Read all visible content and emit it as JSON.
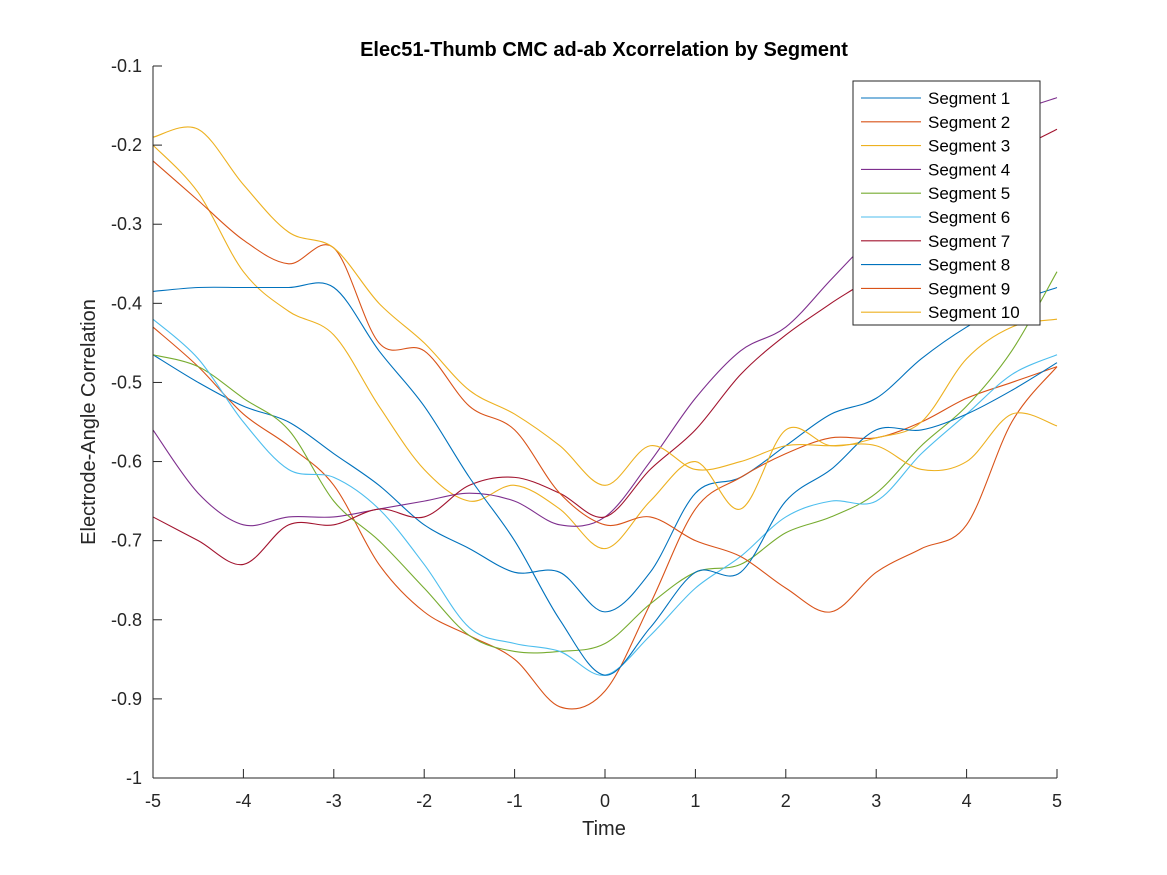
{
  "chart_data": {
    "type": "line",
    "title": "Elec51-Thumb CMC ad-ab Xcorrelation by Segment",
    "xlabel": "Time",
    "ylabel": "Electrode-Angle Correlation",
    "xlim": [
      -5,
      5
    ],
    "ylim": [
      -1,
      -0.1
    ],
    "xticks": [
      -5,
      -4,
      -3,
      -2,
      -1,
      0,
      1,
      2,
      3,
      4,
      5
    ],
    "yticks": [
      -1,
      -0.9,
      -0.8,
      -0.7,
      -0.6,
      -0.5,
      -0.4,
      -0.3,
      -0.2,
      -0.1
    ],
    "xtick_labels": [
      "-5",
      "-4",
      "-3",
      "-2",
      "-1",
      "0",
      "1",
      "2",
      "3",
      "4",
      "5"
    ],
    "ytick_labels": [
      "-1",
      "-0.9",
      "-0.8",
      "-0.7",
      "-0.6",
      "-0.5",
      "-0.4",
      "-0.3",
      "-0.2",
      "-0.1"
    ],
    "grid": false,
    "legend_position": "top-right",
    "x": [
      -5,
      -4.5,
      -4,
      -3.5,
      -3,
      -2.5,
      -2,
      -1.5,
      -1,
      -0.5,
      0,
      0.5,
      1,
      1.5,
      2,
      2.5,
      3,
      3.5,
      4,
      4.5,
      5
    ],
    "series": [
      {
        "name": "Segment 1",
        "color": "#0072BD",
        "values": [
          -0.465,
          -0.5,
          -0.53,
          -0.55,
          -0.59,
          -0.63,
          -0.68,
          -0.71,
          -0.74,
          -0.74,
          -0.79,
          -0.74,
          -0.64,
          -0.62,
          -0.58,
          -0.54,
          -0.52,
          -0.47,
          -0.43,
          -0.4,
          -0.38
        ]
      },
      {
        "name": "Segment 2",
        "color": "#D95319",
        "values": [
          -0.43,
          -0.48,
          -0.54,
          -0.58,
          -0.63,
          -0.73,
          -0.79,
          -0.82,
          -0.85,
          -0.91,
          -0.89,
          -0.78,
          -0.66,
          -0.62,
          -0.59,
          -0.57,
          -0.57,
          -0.55,
          -0.52,
          -0.5,
          -0.48
        ]
      },
      {
        "name": "Segment 3",
        "color": "#EDB120",
        "values": [
          -0.2,
          -0.26,
          -0.36,
          -0.41,
          -0.44,
          -0.53,
          -0.61,
          -0.65,
          -0.63,
          -0.66,
          -0.71,
          -0.65,
          -0.6,
          -0.66,
          -0.56,
          -0.58,
          -0.57,
          -0.55,
          -0.47,
          -0.43,
          -0.42
        ]
      },
      {
        "name": "Segment 4",
        "color": "#7E2F8E",
        "values": [
          -0.56,
          -0.64,
          -0.68,
          -0.67,
          -0.67,
          -0.66,
          -0.65,
          -0.64,
          -0.65,
          -0.68,
          -0.67,
          -0.6,
          -0.52,
          -0.46,
          -0.43,
          -0.37,
          -0.31,
          -0.25,
          -0.19,
          -0.16,
          -0.14
        ]
      },
      {
        "name": "Segment 5",
        "color": "#77AC30",
        "values": [
          -0.465,
          -0.48,
          -0.52,
          -0.56,
          -0.65,
          -0.7,
          -0.76,
          -0.82,
          -0.84,
          -0.84,
          -0.83,
          -0.78,
          -0.74,
          -0.73,
          -0.69,
          -0.67,
          -0.64,
          -0.58,
          -0.53,
          -0.46,
          -0.36
        ]
      },
      {
        "name": "Segment 6",
        "color": "#4DBEEE",
        "values": [
          -0.42,
          -0.47,
          -0.55,
          -0.61,
          -0.62,
          -0.66,
          -0.73,
          -0.81,
          -0.83,
          -0.84,
          -0.87,
          -0.82,
          -0.76,
          -0.72,
          -0.67,
          -0.65,
          -0.65,
          -0.59,
          -0.54,
          -0.49,
          -0.465
        ]
      },
      {
        "name": "Segment 7",
        "color": "#A2142F",
        "values": [
          -0.67,
          -0.7,
          -0.73,
          -0.68,
          -0.68,
          -0.66,
          -0.67,
          -0.63,
          -0.62,
          -0.64,
          -0.67,
          -0.61,
          -0.56,
          -0.49,
          -0.44,
          -0.4,
          -0.36,
          -0.29,
          -0.25,
          -0.21,
          -0.18
        ]
      },
      {
        "name": "Segment 8",
        "color": "#0072BD",
        "values": [
          -0.385,
          -0.38,
          -0.38,
          -0.38,
          -0.38,
          -0.46,
          -0.53,
          -0.62,
          -0.7,
          -0.8,
          -0.87,
          -0.81,
          -0.74,
          -0.74,
          -0.65,
          -0.61,
          -0.56,
          -0.56,
          -0.54,
          -0.51,
          -0.475
        ]
      },
      {
        "name": "Segment 9",
        "color": "#D95319",
        "values": [
          -0.22,
          -0.27,
          -0.32,
          -0.35,
          -0.33,
          -0.45,
          -0.46,
          -0.53,
          -0.56,
          -0.64,
          -0.68,
          -0.67,
          -0.7,
          -0.72,
          -0.76,
          -0.79,
          -0.74,
          -0.71,
          -0.68,
          -0.55,
          -0.48
        ]
      },
      {
        "name": "Segment 10",
        "color": "#EDB120",
        "values": [
          -0.19,
          -0.18,
          -0.25,
          -0.31,
          -0.33,
          -0.4,
          -0.45,
          -0.51,
          -0.54,
          -0.58,
          -0.63,
          -0.58,
          -0.61,
          -0.6,
          -0.58,
          -0.58,
          -0.58,
          -0.61,
          -0.6,
          -0.54,
          -0.555
        ]
      }
    ]
  }
}
